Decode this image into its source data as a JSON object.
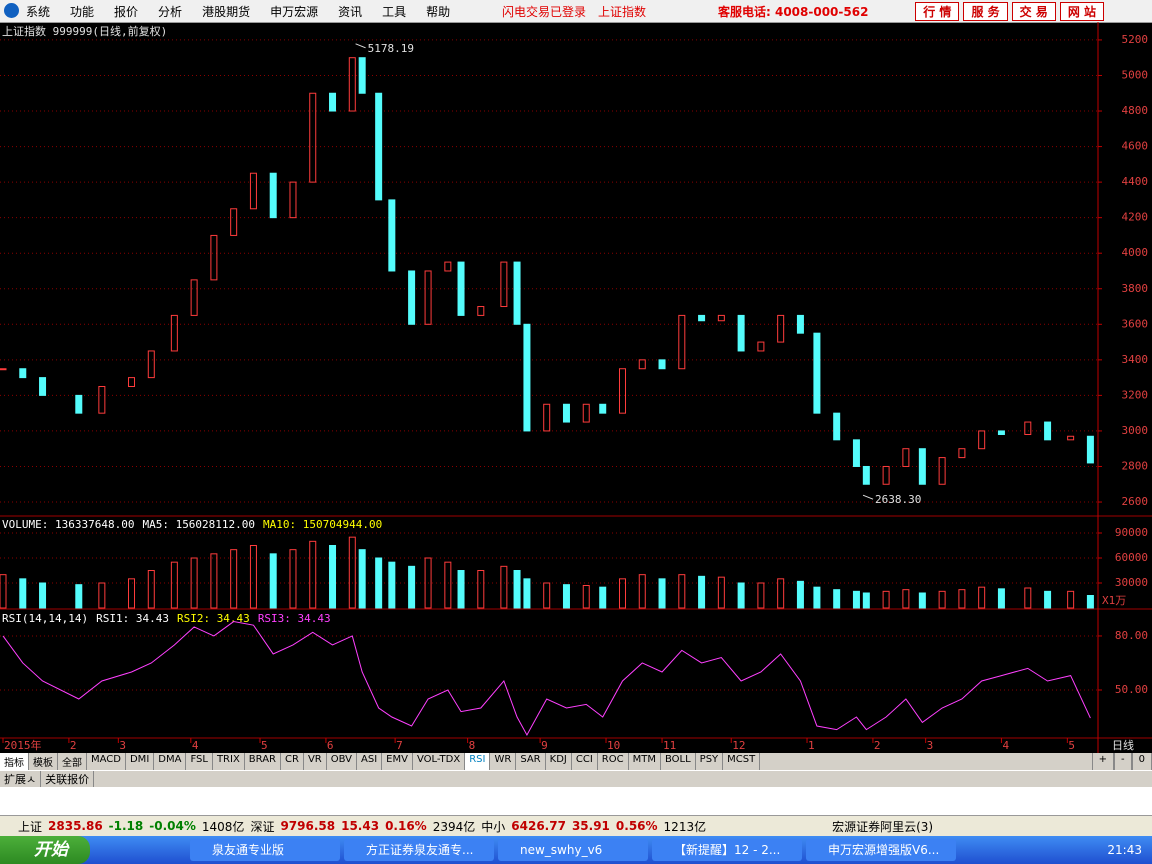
{
  "app_menu": [
    "系统",
    "功能",
    "报价",
    "分析",
    "港股期货",
    "申万宏源",
    "资讯",
    "工具",
    "帮助"
  ],
  "login_status": "闪电交易已登录",
  "current_index": "上证指数",
  "hotline": "客服电话: 4008-000-562",
  "top_buttons": [
    "行 情",
    "服 务",
    "交 易",
    "网 站"
  ],
  "chart_data": [
    {
      "type": "candlestick",
      "title": "上证指数 999999(日线,前复权)",
      "color_up": "#ff3c3c",
      "color_down": "#54fcfc",
      "grid": true,
      "x": [
        0,
        6,
        12,
        23,
        30,
        39,
        45,
        52,
        58,
        64,
        70,
        76,
        82,
        88,
        94,
        100,
        106,
        109,
        114,
        118,
        124,
        129,
        135,
        139,
        145,
        152,
        156,
        159,
        165,
        171,
        177,
        182,
        188,
        194,
        200,
        206,
        212,
        218,
        224,
        230,
        236,
        242,
        247,
        253,
        259,
        262,
        268,
        274,
        279,
        285,
        291,
        297,
        303,
        311,
        317,
        324,
        330
      ],
      "values": [
        3350,
        3300,
        3200,
        3100,
        3250,
        3300,
        3450,
        3650,
        3850,
        4100,
        4250,
        4450,
        4200,
        4400,
        4900,
        4800,
        5100,
        4900,
        4300,
        3900,
        3600,
        3900,
        3950,
        3650,
        3700,
        3950,
        3600,
        3000,
        3150,
        3050,
        3150,
        3100,
        3350,
        3400,
        3350,
        3650,
        3620,
        3650,
        3450,
        3500,
        3650,
        3550,
        3100,
        2950,
        2800,
        2700,
        2800,
        2900,
        2700,
        2850,
        2900,
        3000,
        2980,
        3050,
        2950,
        2970,
        2820
      ],
      "xlim": [
        0,
        332
      ],
      "ylim": [
        2527,
        5284
      ],
      "yticks": [
        2600,
        2800,
        3000,
        3200,
        3400,
        3600,
        3800,
        4000,
        4200,
        4400,
        4600,
        4800,
        5000,
        5200
      ],
      "annotations": [
        {
          "x": 107,
          "value": 5178.19,
          "label": "5178.19"
        },
        {
          "x": 261,
          "value": 2638.3,
          "label": "2638.30"
        }
      ]
    },
    {
      "type": "bar",
      "legend": [
        {
          "text": "VOLUME: 136337648.00",
          "color": "#ffffff"
        },
        {
          "text": "MA5: 156028112.00",
          "color": "#ffffff"
        },
        {
          "text": "MA10: 150704944.00",
          "color": "#ffff00"
        }
      ],
      "unit": "X1万",
      "x": [
        0,
        6,
        12,
        23,
        30,
        39,
        45,
        52,
        58,
        64,
        70,
        76,
        82,
        88,
        94,
        100,
        106,
        109,
        114,
        118,
        124,
        129,
        135,
        139,
        145,
        152,
        156,
        159,
        165,
        171,
        177,
        182,
        188,
        194,
        200,
        206,
        212,
        218,
        224,
        230,
        236,
        242,
        247,
        253,
        259,
        262,
        268,
        274,
        279,
        285,
        291,
        297,
        303,
        311,
        317,
        324,
        330
      ],
      "values": [
        40000,
        35000,
        30000,
        28000,
        30000,
        35000,
        45000,
        55000,
        60000,
        65000,
        70000,
        75000,
        65000,
        70000,
        80000,
        75000,
        85000,
        70000,
        60000,
        55000,
        50000,
        60000,
        55000,
        45000,
        45000,
        50000,
        45000,
        35000,
        30000,
        28000,
        27000,
        25000,
        35000,
        40000,
        35000,
        40000,
        38000,
        37000,
        30000,
        30000,
        35000,
        32000,
        25000,
        22000,
        20000,
        18000,
        20000,
        22000,
        18000,
        20000,
        22000,
        25000,
        23000,
        24000,
        20000,
        20000,
        15000
      ],
      "xlim": [
        0,
        332
      ],
      "ylim": [
        0,
        108000
      ],
      "yticks": [
        30000,
        60000,
        90000
      ],
      "grid": true
    },
    {
      "type": "line",
      "legend": [
        {
          "text": "RSI(14,14,14)",
          "color": "#ffffff"
        },
        {
          "text": "RSI1: 34.43",
          "color": "#ffffff"
        },
        {
          "text": "RSI2: 34.43",
          "color": "#ffff00"
        },
        {
          "text": "RSI3: 34.43",
          "color": "#ff40ff"
        }
      ],
      "color": "#ff40ff",
      "x": [
        0,
        6,
        12,
        23,
        30,
        39,
        45,
        52,
        58,
        64,
        70,
        76,
        82,
        88,
        94,
        100,
        106,
        109,
        114,
        118,
        124,
        129,
        135,
        139,
        145,
        152,
        156,
        159,
        165,
        171,
        177,
        182,
        188,
        194,
        200,
        206,
        212,
        218,
        224,
        230,
        236,
        242,
        247,
        253,
        259,
        262,
        268,
        274,
        279,
        285,
        291,
        297,
        303,
        311,
        317,
        324,
        330
      ],
      "values": [
        80,
        65,
        55,
        45,
        55,
        60,
        65,
        75,
        85,
        80,
        88,
        86,
        70,
        75,
        82,
        75,
        80,
        60,
        40,
        35,
        30,
        45,
        50,
        38,
        40,
        55,
        35,
        25,
        45,
        40,
        42,
        35,
        55,
        65,
        60,
        72,
        65,
        68,
        55,
        60,
        70,
        55,
        30,
        28,
        35,
        28,
        35,
        45,
        32,
        40,
        45,
        55,
        58,
        62,
        55,
        58,
        34.43
      ],
      "xlim": [
        0,
        332
      ],
      "ylim": [
        23.9,
        93.3
      ],
      "yticks": [
        {
          "value": 50,
          "label": "50.00"
        },
        {
          "value": 80,
          "label": "80.00"
        }
      ],
      "grid": true,
      "xticks": [
        {
          "value": 0,
          "label": "2015年"
        },
        {
          "value": 20,
          "label": "2"
        },
        {
          "value": 35,
          "label": "3"
        },
        {
          "value": 57,
          "label": "4"
        },
        {
          "value": 78,
          "label": "5"
        },
        {
          "value": 98,
          "label": "6"
        },
        {
          "value": 119,
          "label": "7"
        },
        {
          "value": 141,
          "label": "8"
        },
        {
          "value": 163,
          "label": "9"
        },
        {
          "value": 183,
          "label": "10"
        },
        {
          "value": 200,
          "label": "11"
        },
        {
          "value": 221,
          "label": "12"
        },
        {
          "value": 244,
          "label": "1"
        },
        {
          "value": 264,
          "label": "2"
        },
        {
          "value": 280,
          "label": "3"
        },
        {
          "value": 303,
          "label": "4"
        },
        {
          "value": 323,
          "label": "5"
        }
      ],
      "period": "日线"
    }
  ],
  "indicator_tabs": [
    "指标",
    "模板",
    "全部",
    "MACD",
    "DMI",
    "DMA",
    "FSL",
    "TRIX",
    "BRAR",
    "CR",
    "VR",
    "OBV",
    "ASI",
    "EMV",
    "VOL-TDX",
    "RSI",
    "WR",
    "SAR",
    "KDJ",
    "CCI",
    "ROC",
    "MTM",
    "BOLL",
    "PSY",
    "MCST"
  ],
  "zoom_buttons": [
    "+",
    "-",
    "0"
  ],
  "extra_tabs": [
    "扩展ㅅ",
    "关联报价"
  ],
  "status_bar": [
    {
      "text": "上证",
      "color": "#000"
    },
    {
      "text": "2835.86",
      "color": "#c00000"
    },
    {
      "text": "-1.18",
      "color": "#008000"
    },
    {
      "text": "-0.04%",
      "color": "#008000"
    },
    {
      "text": "1408亿",
      "color": "#000"
    },
    {
      "text": "深证",
      "color": "#000"
    },
    {
      "text": "9796.58",
      "color": "#c00000"
    },
    {
      "text": "15.43",
      "color": "#c00000"
    },
    {
      "text": "0.16%",
      "color": "#c00000"
    },
    {
      "text": "2394亿",
      "color": "#000"
    },
    {
      "text": "中小",
      "color": "#000"
    },
    {
      "text": "6426.77",
      "color": "#c00000"
    },
    {
      "text": "35.91",
      "color": "#c00000"
    },
    {
      "text": "0.56%",
      "color": "#c00000"
    },
    {
      "text": "1213亿",
      "color": "#000"
    }
  ],
  "broker": "宏源证券阿里云(3)",
  "taskbar": {
    "start": "开始",
    "windows": [
      "泉友通专业版",
      "方正证券泉友通专...",
      "new_swhy_v6",
      "【新提醒】12 - 2...",
      "申万宏源增强版V6..."
    ],
    "clock": "21:43"
  }
}
